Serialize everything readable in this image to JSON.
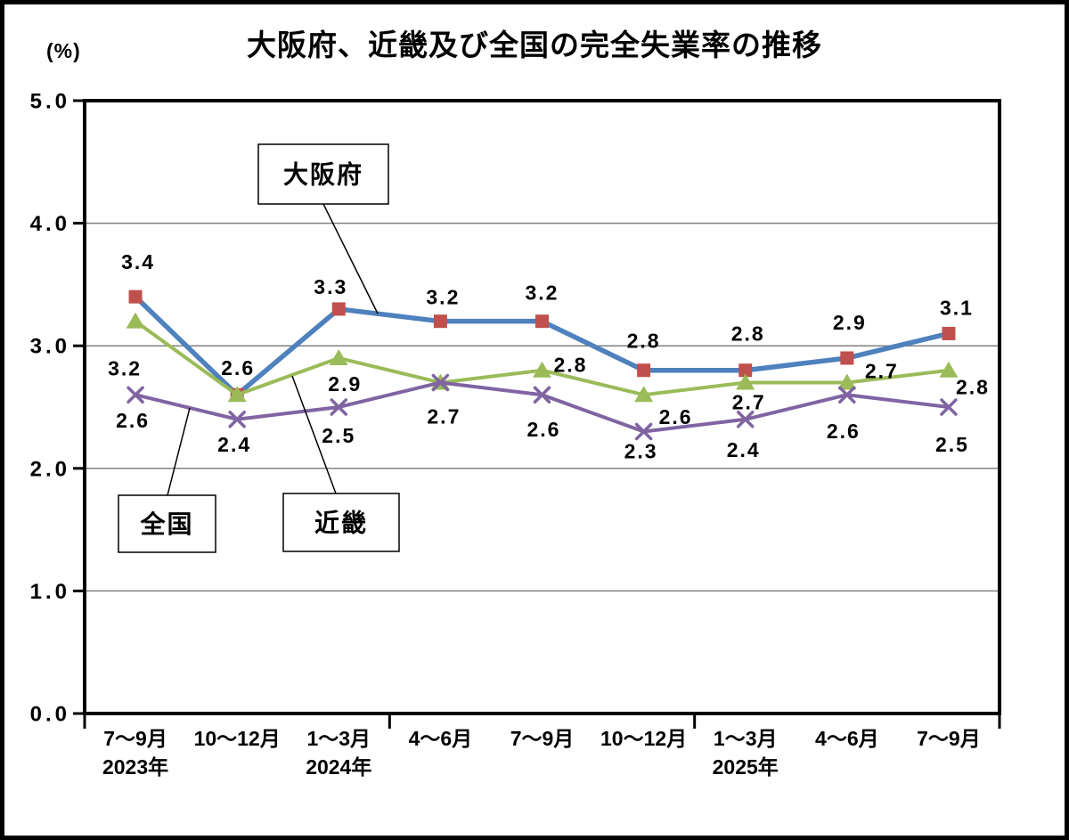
{
  "chart_data": {
    "type": "line",
    "title": "大阪府、近畿及び全国の完全失業率の推移",
    "unit_label": "(%)",
    "xlabel": "",
    "ylabel": "%",
    "ylim": [
      0.0,
      5.0
    ],
    "grid": "horizontal",
    "legend_position": "floating-callout-boxes",
    "categories": [
      "7〜9月",
      "10〜12月",
      "1〜3月",
      "4〜6月",
      "7〜9月",
      "10〜12月",
      "1〜3月",
      "4〜6月",
      "7〜9月"
    ],
    "year_labels": [
      {
        "category_index": 0,
        "label": "2023年"
      },
      {
        "category_index": 2,
        "label": "2024年"
      },
      {
        "category_index": 6,
        "label": "2025年"
      }
    ],
    "y_tick_labels": [
      "5.0",
      "4.0",
      "3.0",
      "2.0",
      "1.0",
      "0.0"
    ],
    "y_tick_values": [
      5.0,
      4.0,
      3.0,
      2.0,
      1.0,
      0.0
    ],
    "x_group_tick_interval": 3,
    "series": [
      {
        "name": "大阪府",
        "key": "osaka",
        "line_color": "#4E81BD",
        "marker": "square",
        "marker_color": "#C0504D",
        "values": [
          3.4,
          2.6,
          3.3,
          3.2,
          3.2,
          2.8,
          2.8,
          2.9,
          3.1
        ],
        "point_labels": [
          "3.4",
          "2.6",
          "3.3",
          "3.2",
          "3.2",
          "2.8",
          "2.8",
          "2.9",
          "3.1"
        ]
      },
      {
        "name": "近畿",
        "key": "kinki",
        "line_color": "#9BBB59",
        "marker": "triangle",
        "marker_color": "#9BBB59",
        "values": [
          3.2,
          2.6,
          2.9,
          2.7,
          2.8,
          2.6,
          2.7,
          2.7,
          2.8
        ],
        "point_labels": [
          "3.2",
          null,
          "2.9",
          null,
          "2.8",
          "2.6",
          "2.7",
          "2.7",
          "2.8"
        ]
      },
      {
        "name": "全国",
        "key": "national",
        "line_color": "#8064A2",
        "marker": "x",
        "marker_color": "#8064A2",
        "values": [
          2.6,
          2.4,
          2.5,
          2.7,
          2.6,
          2.3,
          2.4,
          2.6,
          2.5
        ],
        "point_labels": [
          "2.6",
          "2.4",
          "2.5",
          "2.7",
          "2.6",
          "2.3",
          "2.4",
          "2.6",
          "2.5"
        ]
      }
    ],
    "annotations": [
      {
        "label": "大阪府",
        "series": "osaka"
      },
      {
        "label": "全国",
        "series": "national"
      },
      {
        "label": "近畿",
        "series": "kinki"
      }
    ]
  }
}
